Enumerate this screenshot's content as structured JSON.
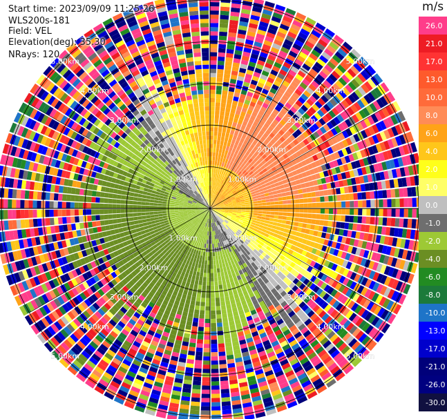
{
  "meta": {
    "start_time": "Start time: 2023/09/09 11:25:26",
    "instrument": "WLS200s-181",
    "field": "Field: VEL",
    "elevation": "Elevation(deg): 35.30",
    "nrays": "NRays: 120"
  },
  "chart_data": {
    "type": "heatmap",
    "subtype": "radar-ppi",
    "unit": "m/s",
    "n_rays": 120,
    "max_range_km": 5.0,
    "range_rings_km": [
      1.0,
      2.0,
      3.0,
      4.0,
      5.0
    ],
    "range_ring_labels": [
      "1.00km",
      "2.00km",
      "3.00km",
      "4.00km",
      "5.00km"
    ],
    "spokes": 12,
    "crosshair": true,
    "colorbar": {
      "ticks": [
        "26.0",
        "21.0",
        "17.0",
        "13.0",
        "10.0",
        "8.0",
        "6.0",
        "4.0",
        "2.0",
        "1.0",
        "0.0",
        "-1.0",
        "-2.0",
        "-4.0",
        "-6.0",
        "-8.0",
        "-10.0",
        "-13.0",
        "-17.0",
        "-21.0",
        "-26.0",
        "-30.0"
      ],
      "colors": [
        "#ff3d8a",
        "#ee1c24",
        "#ff3333",
        "#fe5a2c",
        "#ff6b3a",
        "#ff8c57",
        "#ffa318",
        "#ffc61a",
        "#ffff1a",
        "#ffff66",
        "#bfbfbf",
        "#6e6e6e",
        "#9dc935",
        "#6b8e23",
        "#228b22",
        "#1c7a3a",
        "#1e74c8",
        "#0000ff",
        "#0000cc",
        "#00007a",
        "#000080",
        "#101040"
      ]
    },
    "field_description": {
      "near_field_velocity_range": [
        -8.0,
        8.0
      ],
      "far_field": "noisy (folded/invalid) values across full range"
    }
  }
}
